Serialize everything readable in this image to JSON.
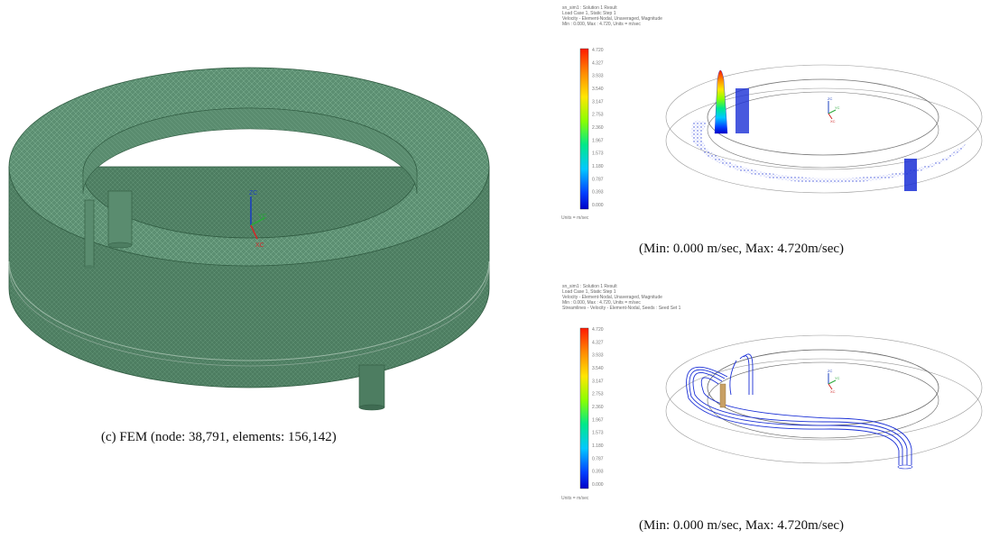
{
  "left_figure": {
    "caption": "(c) FEM (node: 38,791, elements: 156,142)",
    "axes": {
      "z": "ZC",
      "y": "YC",
      "x": "XC"
    }
  },
  "top_right_figure": {
    "header_lines": [
      "sn_sim1 : Solution 1 Result",
      "Load Case 1, Static Step 1",
      "Velocity - Element-Nodal, Unaveraged, Magnitude",
      "Min : 0.000, Max : 4.720, Units = m/sec"
    ],
    "caption": "(Min:  0.000  m/sec,  Max:  4.720m/sec)",
    "units": "Units = m/sec",
    "axes": {
      "z": "ZC",
      "y": "YC",
      "x": "XC"
    }
  },
  "bottom_right_figure": {
    "header_lines": [
      "sn_sim1 : Solution 1 Result",
      "Load Case 1, Static Step 1",
      "Velocity - Element-Nodal, Unaveraged, Magnitude",
      "Min : 0.000, Max : 4.720, Units = m/sec",
      "Streamlines - Velocity - Element-Nodal, Seeds : Seed Set 1"
    ],
    "caption": "(Min:  0.000  m/sec,  Max:  4.720m/sec)",
    "units": "Units = m/sec",
    "axes": {
      "z": "ZC",
      "y": "YC",
      "x": "XC"
    }
  },
  "colorbar_labels": [
    "4.720",
    "4.327",
    "3.933",
    "3.540",
    "3.147",
    "2.753",
    "2.360",
    "1.967",
    "1.573",
    "1.180",
    "0.787",
    "0.393",
    "0.000"
  ],
  "colors": {
    "mesh": "#5c8f72",
    "mesh_dark": "#3f6b52",
    "flow": "#1a2fd6"
  }
}
